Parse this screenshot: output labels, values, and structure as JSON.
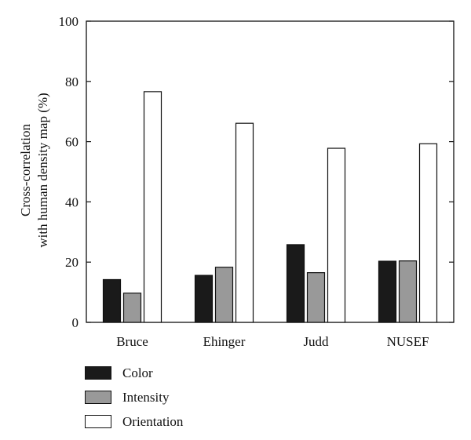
{
  "chart_data": {
    "type": "bar",
    "title": "",
    "xlabel": "",
    "ylabel_lines": [
      "Cross-correlation",
      "with human density map (%)"
    ],
    "categories": [
      "Bruce",
      "Ehinger",
      "Judd",
      "NUSEF"
    ],
    "series": [
      {
        "name": "Color",
        "color": "#1a1a1a",
        "values": [
          14.2,
          15.6,
          25.8,
          20.3
        ]
      },
      {
        "name": "Intensity",
        "color": "#999999",
        "values": [
          9.7,
          18.3,
          16.5,
          20.4
        ]
      },
      {
        "name": "Orientation",
        "color": "#ffffff",
        "values": [
          76.6,
          66.1,
          57.8,
          59.3
        ]
      }
    ],
    "ylim": [
      0,
      100
    ],
    "yticks": [
      0,
      20,
      40,
      60,
      80,
      100
    ],
    "legend_position": "bottom-left",
    "grid": false
  }
}
